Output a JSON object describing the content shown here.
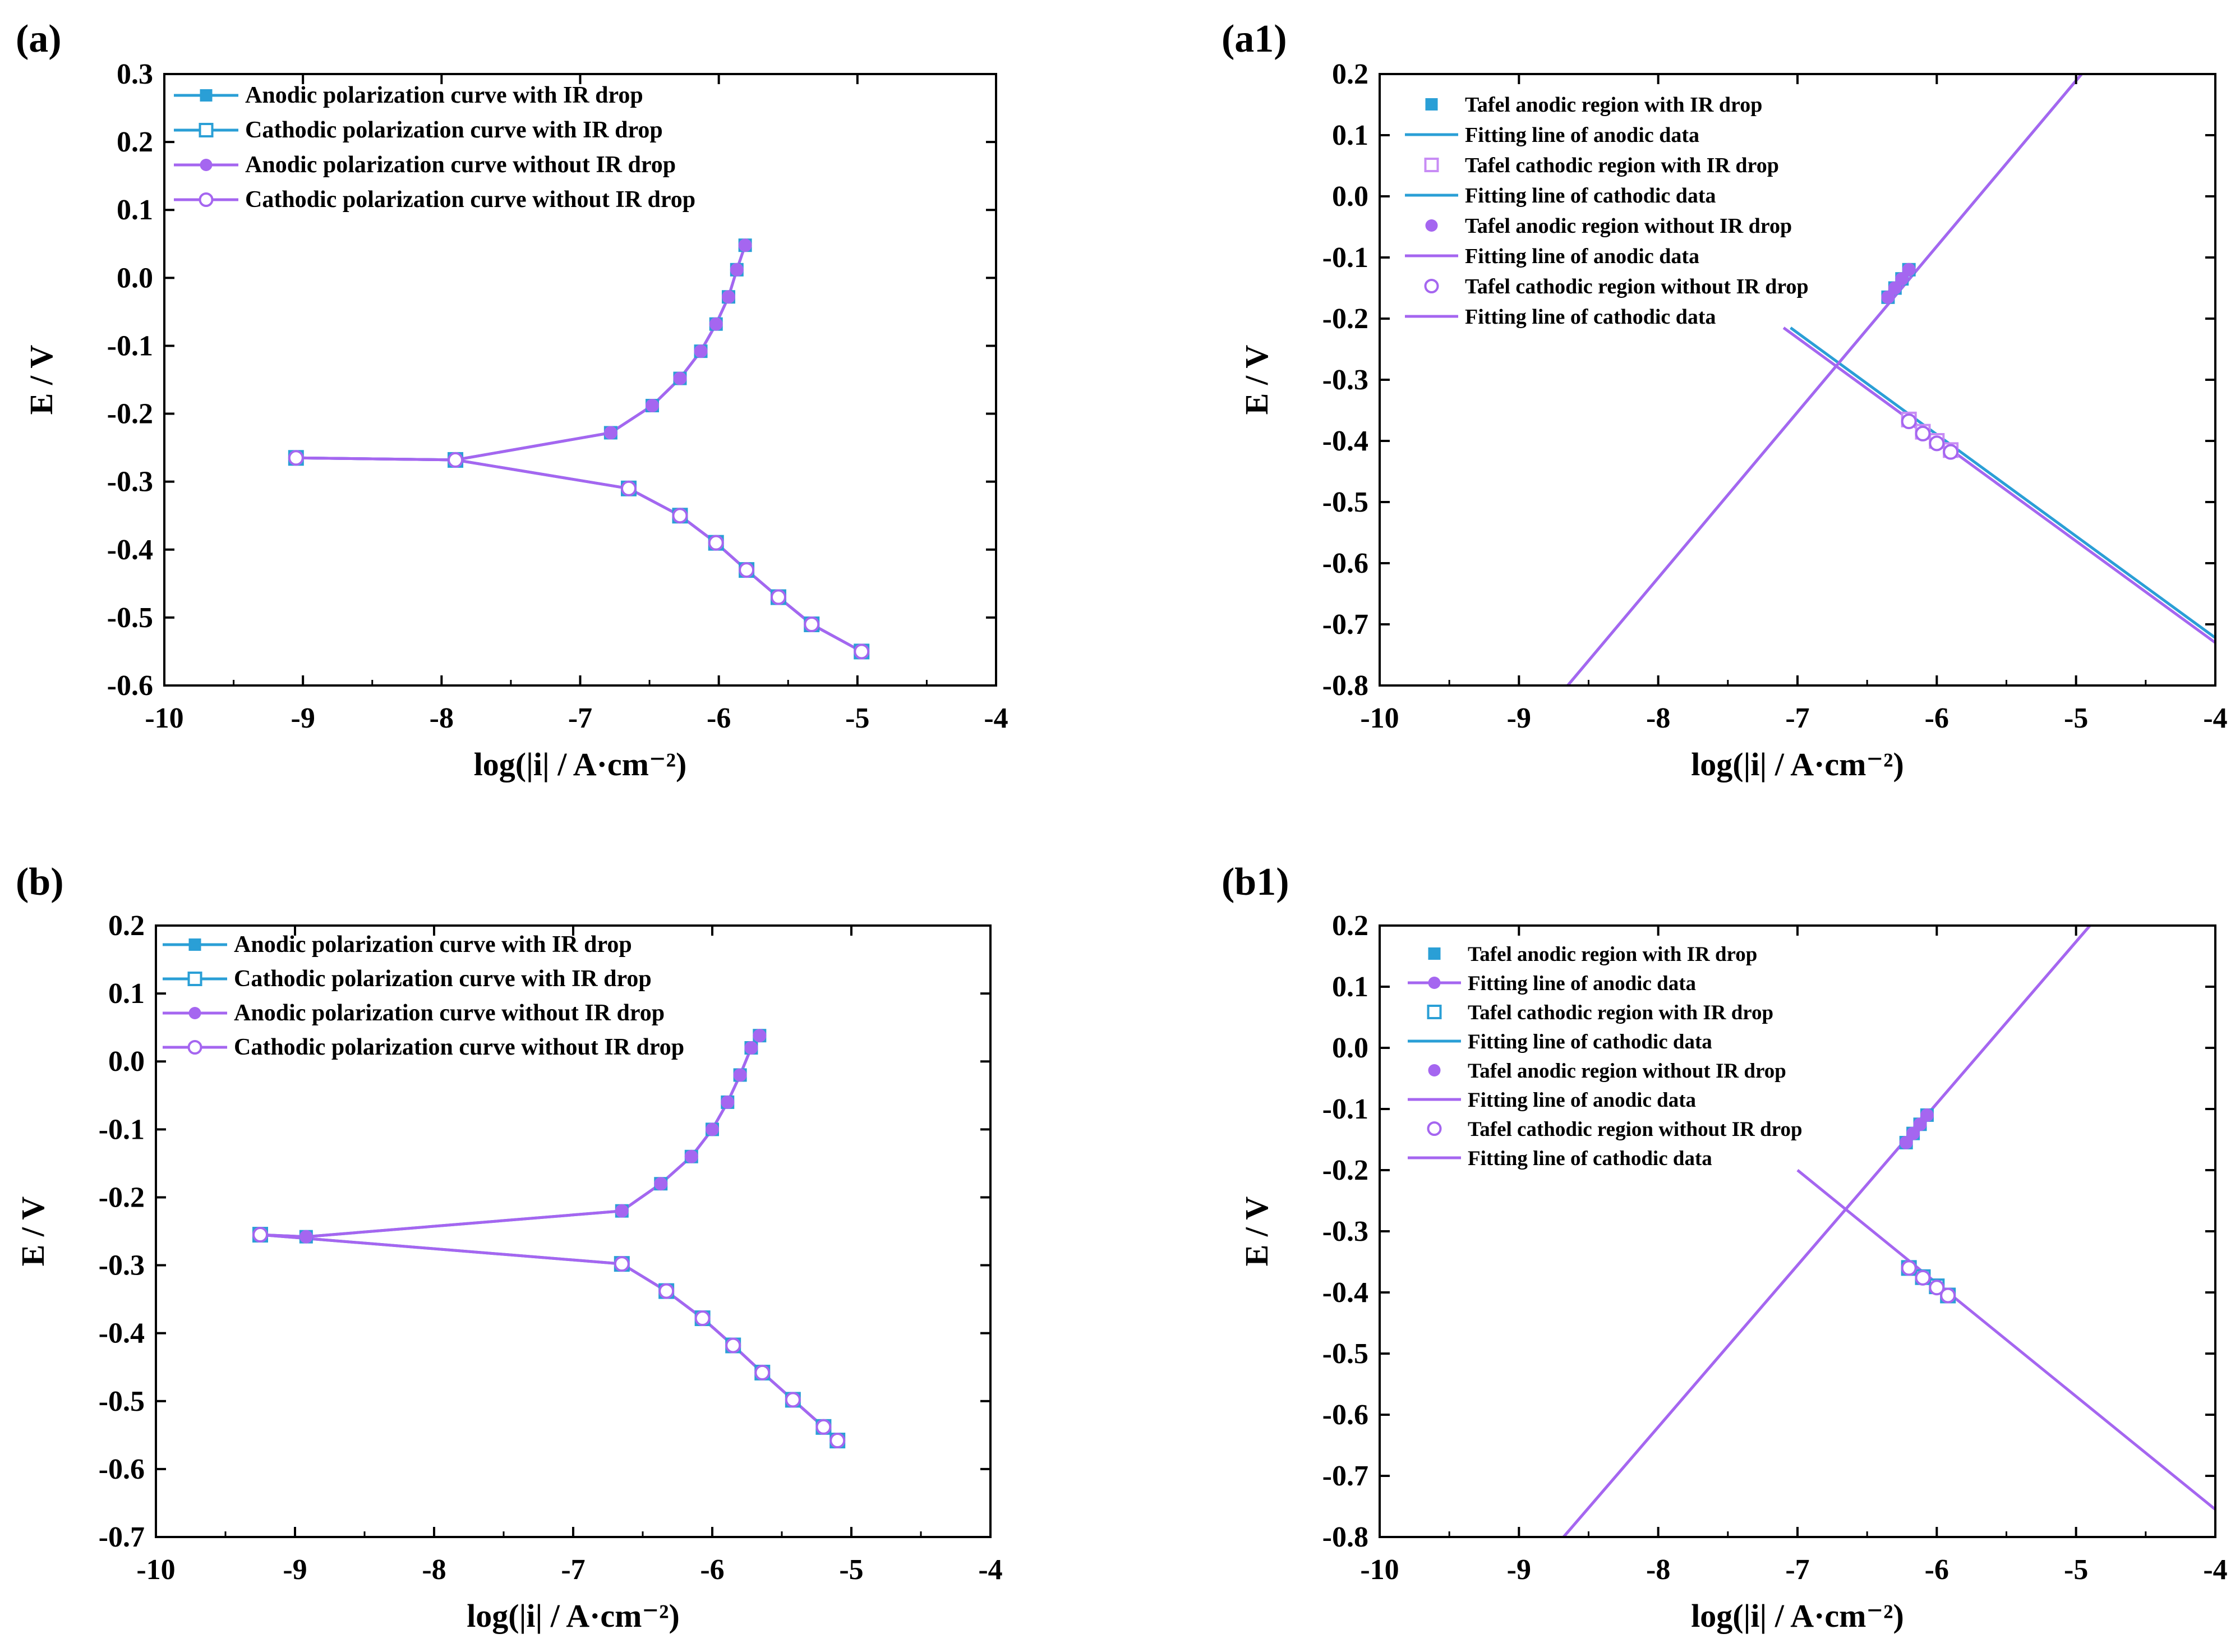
{
  "figure": {
    "panels": [
      {
        "id": "a",
        "label": "(a)"
      },
      {
        "id": "a1",
        "label": "(a1)"
      },
      {
        "id": "b",
        "label": "(b)"
      },
      {
        "id": "b1",
        "label": "(b1)"
      }
    ]
  },
  "chart_data": [
    {
      "panel": "(a)",
      "type": "line",
      "xlabel": "log(|i| / A·cm⁻²)",
      "ylabel": "E / V",
      "xlim": [
        -10,
        -4
      ],
      "ylim": [
        -0.6,
        0.3
      ],
      "xticks": [
        -10,
        -9,
        -8,
        -7,
        -6,
        -5,
        -4
      ],
      "yticks": [
        0.3,
        0.2,
        0.1,
        0.0,
        -0.1,
        -0.2,
        -0.3,
        -0.4,
        -0.5,
        -0.6
      ],
      "xtick_labels": [
        "-10",
        "-9",
        "-8",
        "-7",
        "-6",
        "-5",
        "-4"
      ],
      "ytick_labels": [
        "0.3",
        "0.2",
        "0.1",
        "0.0",
        "-0.1",
        "-0.2",
        "-0.3",
        "-0.4",
        "-0.5",
        "-0.6"
      ],
      "legend_position": "top-left",
      "series": [
        {
          "name": "Anodic polarization curve with IR drop",
          "color": "#2a9fd6",
          "marker": "filled-square",
          "x": [
            -9.05,
            -7.9,
            -6.78,
            -6.48,
            -6.28,
            -6.13,
            -6.02,
            -5.93,
            -5.87,
            -5.81
          ],
          "y": [
            -0.265,
            -0.268,
            -0.228,
            -0.188,
            -0.148,
            -0.108,
            -0.068,
            -0.028,
            0.012,
            0.048
          ]
        },
        {
          "name": "Cathodic polarization curve with IR drop",
          "color": "#2a9fd6",
          "marker": "open-square",
          "x": [
            -9.05,
            -7.9,
            -6.65,
            -6.28,
            -6.02,
            -5.8,
            -5.57,
            -5.33,
            -4.97
          ],
          "y": [
            -0.265,
            -0.268,
            -0.31,
            -0.35,
            -0.39,
            -0.43,
            -0.47,
            -0.51,
            -0.55
          ]
        },
        {
          "name": "Anodic polarization curve without IR drop",
          "color": "#a566f0",
          "marker": "filled-circle",
          "x": [
            -9.05,
            -7.9,
            -6.78,
            -6.48,
            -6.28,
            -6.13,
            -6.02,
            -5.93,
            -5.87,
            -5.81
          ],
          "y": [
            -0.265,
            -0.268,
            -0.228,
            -0.188,
            -0.148,
            -0.108,
            -0.068,
            -0.028,
            0.012,
            0.048
          ]
        },
        {
          "name": "Cathodic polarization curve without IR drop",
          "color": "#a566f0",
          "marker": "open-circle",
          "x": [
            -9.05,
            -7.9,
            -6.65,
            -6.28,
            -6.02,
            -5.8,
            -5.57,
            -5.33,
            -4.97
          ],
          "y": [
            -0.265,
            -0.268,
            -0.31,
            -0.35,
            -0.39,
            -0.43,
            -0.47,
            -0.51,
            -0.55
          ]
        }
      ]
    },
    {
      "panel": "(a1)",
      "type": "line",
      "xlabel": "log(|i| / A·cm⁻²)",
      "ylabel": "E / V",
      "xlim": [
        -10,
        -4
      ],
      "ylim": [
        -0.8,
        0.2
      ],
      "xticks": [
        -10,
        -9,
        -8,
        -7,
        -6,
        -5,
        -4
      ],
      "yticks": [
        0.2,
        0.1,
        0.0,
        -0.1,
        -0.2,
        -0.3,
        -0.4,
        -0.5,
        -0.6,
        -0.7,
        -0.8
      ],
      "xtick_labels": [
        "-10",
        "-9",
        "-8",
        "-7",
        "-6",
        "-5",
        "-4"
      ],
      "ytick_labels": [
        "0.2",
        "0.1",
        "0.0",
        "-0.1",
        "-0.2",
        "-0.3",
        "-0.4",
        "-0.5",
        "-0.6",
        "-0.7",
        "-0.8"
      ],
      "legend_position": "top-left",
      "series": [
        {
          "name": "Tafel anodic region with IR drop",
          "color": "#2a9fd6",
          "marker": "filled-square",
          "x": [
            -6.35,
            -6.3,
            -6.25,
            -6.2
          ],
          "y": [
            -0.165,
            -0.15,
            -0.135,
            -0.12
          ]
        },
        {
          "name": "Fitting line of anodic data",
          "color": "#2a9fd6",
          "marker": "line",
          "x": [
            -8.65,
            -4.96
          ],
          "y": [
            -0.8,
            0.2
          ]
        },
        {
          "name": "Tafel cathodic region with IR drop",
          "color": "#c88cf5",
          "marker": "open-square",
          "x": [
            -6.2,
            -6.1,
            -6.0,
            -5.9
          ],
          "y": [
            -0.365,
            -0.385,
            -0.4,
            -0.415
          ]
        },
        {
          "name": "Fitting line of cathodic data",
          "color": "#2a9fd6",
          "marker": "line",
          "x": [
            -7.05,
            -4.0
          ],
          "y": [
            -0.215,
            -0.722
          ]
        },
        {
          "name": "Tafel anodic region without IR drop",
          "color": "#a566f0",
          "marker": "filled-circle",
          "x": [
            -6.35,
            -6.3,
            -6.25,
            -6.2
          ],
          "y": [
            -0.165,
            -0.15,
            -0.135,
            -0.12
          ]
        },
        {
          "name": "Fitting line of anodic data",
          "color": "#a566f0",
          "marker": "line",
          "x": [
            -8.65,
            -4.96
          ],
          "y": [
            -0.8,
            0.2
          ]
        },
        {
          "name": "Tafel cathodic region without IR drop",
          "color": "#a566f0",
          "marker": "open-circle",
          "x": [
            -6.2,
            -6.1,
            -6.0,
            -5.9
          ],
          "y": [
            -0.368,
            -0.388,
            -0.404,
            -0.418
          ]
        },
        {
          "name": "Fitting line of cathodic data",
          "color": "#a566f0",
          "marker": "line",
          "x": [
            -7.1,
            -4.0
          ],
          "y": [
            -0.215,
            -0.73
          ]
        }
      ]
    },
    {
      "panel": "(b)",
      "type": "line",
      "xlabel": "log(|i| / A·cm⁻²)",
      "ylabel": "E / V",
      "xlim": [
        -10,
        -4
      ],
      "ylim": [
        -0.7,
        0.2
      ],
      "xticks": [
        -10,
        -9,
        -8,
        -7,
        -6,
        -5,
        -4
      ],
      "yticks": [
        0.2,
        0.1,
        0.0,
        -0.1,
        -0.2,
        -0.3,
        -0.4,
        -0.5,
        -0.6,
        -0.7
      ],
      "xtick_labels": [
        "-10",
        "-9",
        "-8",
        "-7",
        "-6",
        "-5",
        "-4"
      ],
      "ytick_labels": [
        "0.2",
        "0.1",
        "0.0",
        "-0.1",
        "-0.2",
        "-0.3",
        "-0.4",
        "-0.5",
        "-0.6",
        "-0.7"
      ],
      "legend_position": "top-left",
      "series": [
        {
          "name": "Anodic polarization curve with IR drop",
          "color": "#2a9fd6",
          "marker": "filled-square",
          "x": [
            -9.25,
            -8.92,
            -6.65,
            -6.37,
            -6.15,
            -6.0,
            -5.89,
            -5.8,
            -5.72,
            -5.66
          ],
          "y": [
            -0.255,
            -0.258,
            -0.22,
            -0.18,
            -0.14,
            -0.1,
            -0.06,
            -0.02,
            0.02,
            0.038
          ]
        },
        {
          "name": "Cathodic polarization curve with IR drop",
          "color": "#2a9fd6",
          "marker": "open-square",
          "x": [
            -9.25,
            -6.65,
            -6.33,
            -6.07,
            -5.85,
            -5.64,
            -5.42,
            -5.2,
            -5.1
          ],
          "y": [
            -0.255,
            -0.298,
            -0.338,
            -0.378,
            -0.418,
            -0.458,
            -0.498,
            -0.538,
            -0.558
          ]
        },
        {
          "name": "Anodic polarization curve without IR drop",
          "color": "#a566f0",
          "marker": "filled-circle",
          "x": [
            -9.25,
            -8.92,
            -6.65,
            -6.37,
            -6.15,
            -6.0,
            -5.89,
            -5.8,
            -5.72,
            -5.66
          ],
          "y": [
            -0.255,
            -0.258,
            -0.22,
            -0.18,
            -0.14,
            -0.1,
            -0.06,
            -0.02,
            0.02,
            0.038
          ]
        },
        {
          "name": "Cathodic polarization curve without IR drop",
          "color": "#a566f0",
          "marker": "open-circle",
          "x": [
            -9.25,
            -6.65,
            -6.33,
            -6.07,
            -5.85,
            -5.64,
            -5.42,
            -5.2,
            -5.1
          ],
          "y": [
            -0.255,
            -0.298,
            -0.338,
            -0.378,
            -0.418,
            -0.458,
            -0.498,
            -0.538,
            -0.558
          ]
        }
      ]
    },
    {
      "panel": "(b1)",
      "type": "line",
      "xlabel": "log(|i| / A·cm⁻²)",
      "ylabel": "E / V",
      "xlim": [
        -10,
        -4
      ],
      "ylim": [
        -0.8,
        0.2
      ],
      "xticks": [
        -10,
        -9,
        -8,
        -7,
        -6,
        -5,
        -4
      ],
      "yticks": [
        0.2,
        0.1,
        0.0,
        -0.1,
        -0.2,
        -0.3,
        -0.4,
        -0.5,
        -0.6,
        -0.7,
        -0.8
      ],
      "xtick_labels": [
        "-10",
        "-9",
        "-8",
        "-7",
        "-6",
        "-5",
        "-4"
      ],
      "ytick_labels": [
        "0.2",
        "0.1",
        "0.0",
        "-0.1",
        "-0.2",
        "-0.3",
        "-0.4",
        "-0.5",
        "-0.6",
        "-0.7",
        "-0.8"
      ],
      "legend_position": "top-left",
      "series": [
        {
          "name": "Tafel anodic region with IR drop",
          "color": "#2a9fd6",
          "marker": "filled-square",
          "x": [
            -6.22,
            -6.17,
            -6.12,
            -6.07
          ],
          "y": [
            -0.155,
            -0.14,
            -0.125,
            -0.11
          ]
        },
        {
          "name": "Fitting line of anodic data",
          "color": "#a566f0",
          "marker": "filled-circle-line",
          "x": [
            -8.68,
            -4.9
          ],
          "y": [
            -0.8,
            0.2
          ]
        },
        {
          "name": "Tafel cathodic region with IR drop",
          "color": "#2a9fd6",
          "marker": "open-square",
          "x": [
            -6.2,
            -6.1,
            -6.0,
            -5.92
          ],
          "y": [
            -0.36,
            -0.375,
            -0.39,
            -0.405
          ]
        },
        {
          "name": "Fitting line of cathodic data",
          "color": "#2a9fd6",
          "marker": "line",
          "x": [
            -6.2,
            -5.92
          ],
          "y": [
            -0.355,
            -0.41
          ]
        },
        {
          "name": "Tafel anodic region without IR drop",
          "color": "#a566f0",
          "marker": "filled-circle",
          "x": [
            -6.22,
            -6.17,
            -6.12,
            -6.07
          ],
          "y": [
            -0.155,
            -0.14,
            -0.125,
            -0.11
          ]
        },
        {
          "name": "Fitting line of anodic data",
          "color": "#a566f0",
          "marker": "line",
          "x": [
            -8.68,
            -4.9
          ],
          "y": [
            -0.8,
            0.2
          ]
        },
        {
          "name": "Tafel cathodic region without IR drop",
          "color": "#a566f0",
          "marker": "open-circle",
          "x": [
            -6.2,
            -6.1,
            -6.0,
            -5.92
          ],
          "y": [
            -0.36,
            -0.376,
            -0.392,
            -0.405
          ]
        },
        {
          "name": "Fitting line of cathodic data",
          "color": "#a566f0",
          "marker": "line",
          "x": [
            -7.0,
            -4.0
          ],
          "y": [
            -0.2,
            -0.755
          ]
        }
      ]
    }
  ]
}
